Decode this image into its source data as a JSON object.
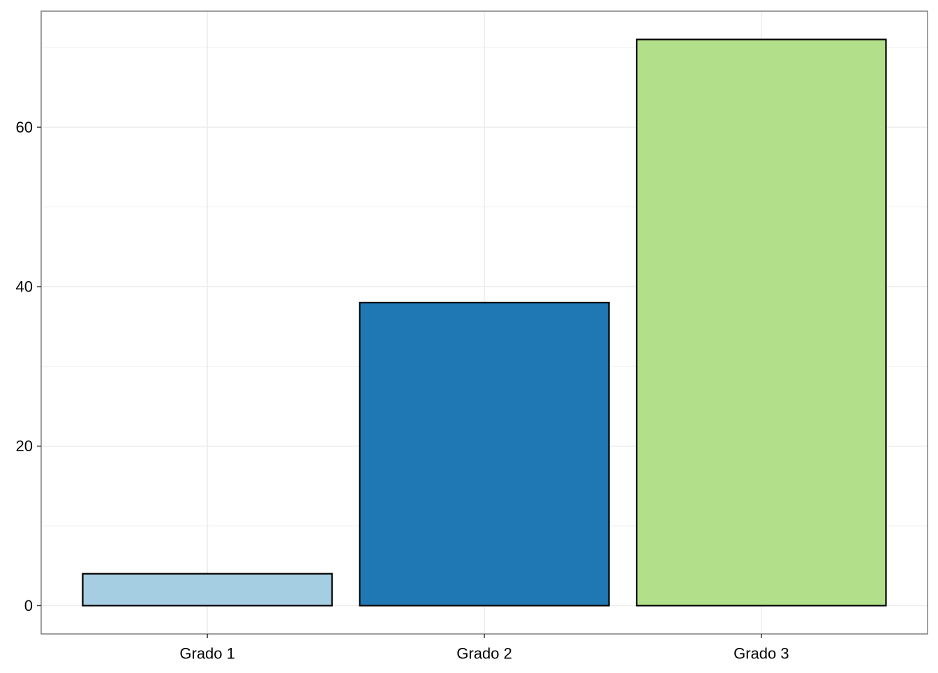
{
  "chart_data": {
    "type": "bar",
    "title": "",
    "xlabel": "",
    "ylabel": "",
    "categories": [
      "Grado 1",
      "Grado 2",
      "Grado 3"
    ],
    "values": [
      4,
      38,
      71
    ],
    "colors": [
      "#A6CEE3",
      "#1F78B4",
      "#B2DF8A"
    ],
    "bar_outline_color": "#000000",
    "ylim": [
      -3.55,
      74.55
    ],
    "yticks": [
      0,
      20,
      40,
      60
    ],
    "yticks_minor": [
      10,
      30,
      50,
      70
    ],
    "grid": true,
    "theme": "bw"
  }
}
